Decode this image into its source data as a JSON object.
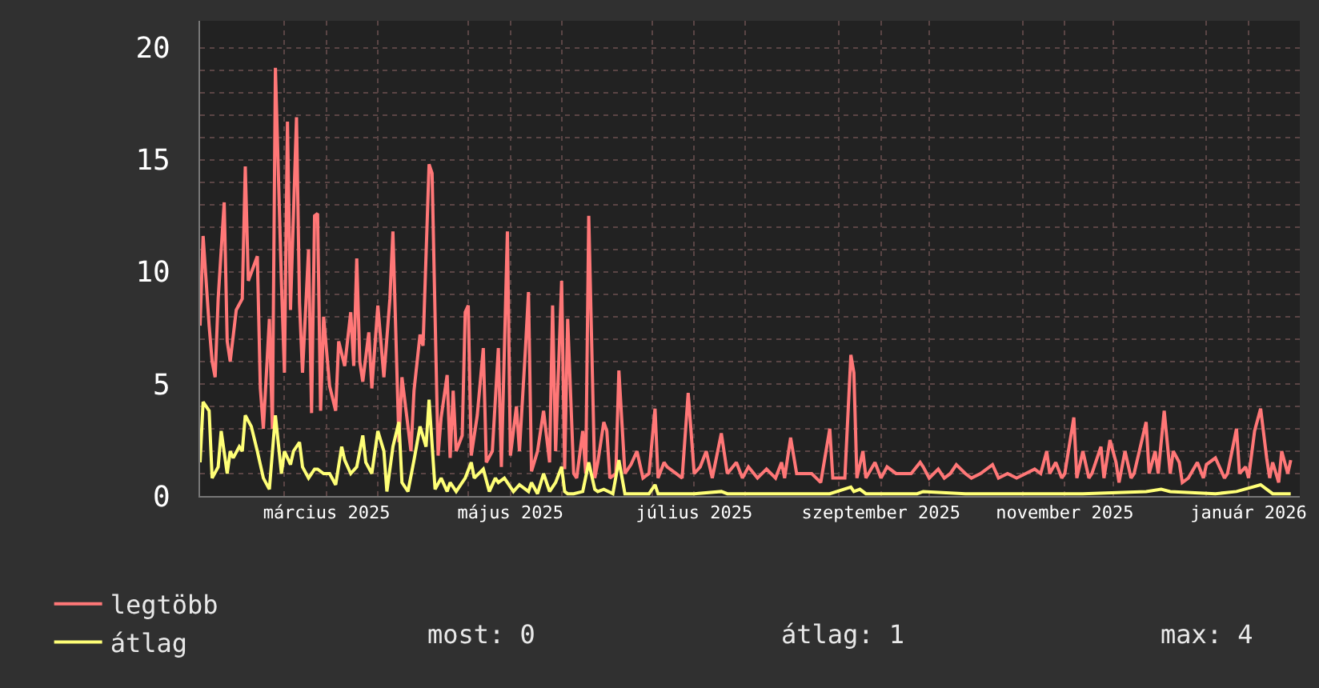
{
  "chart_data": {
    "type": "line",
    "marker": "none",
    "line_style": "solid",
    "grid": true,
    "legend": "bottom left",
    "xlim": [
      "2025-02-01",
      "2026-02-01"
    ],
    "xticks": [
      {
        "value": "2025-03-01",
        "label": null
      },
      {
        "value": "2025-03-15",
        "label": "március 2025"
      },
      {
        "value": "2025-04-01",
        "label": null
      },
      {
        "value": "2025-05-01",
        "label": null
      },
      {
        "value": "2025-05-15",
        "label": "május 2025"
      },
      {
        "value": "2025-06-01",
        "label": null
      },
      {
        "value": "2025-07-01",
        "label": null
      },
      {
        "value": "2025-07-15",
        "label": "július 2025"
      },
      {
        "value": "2025-08-01",
        "label": null
      },
      {
        "value": "2025-09-01",
        "label": null
      },
      {
        "value": "2025-09-15",
        "label": "szeptember 2025"
      },
      {
        "value": "2025-10-01",
        "label": null
      },
      {
        "value": "2025-11-01",
        "label": null
      },
      {
        "value": "2025-11-15",
        "label": "november 2025"
      },
      {
        "value": "2025-12-01",
        "label": null
      },
      {
        "value": "2026-01-01",
        "label": null
      },
      {
        "value": "2026-01-15",
        "label": "január 2026"
      }
    ],
    "ylim": [
      0,
      21.2
    ],
    "yticks": [
      0,
      {
        "value": 1,
        "label": null
      },
      {
        "value": 2,
        "label": null
      },
      {
        "value": 3,
        "label": null
      },
      {
        "value": 4,
        "label": null
      },
      5,
      {
        "value": 6,
        "label": null
      },
      {
        "value": 7,
        "label": null
      },
      {
        "value": 8,
        "label": null
      },
      {
        "value": 9,
        "label": null
      },
      10,
      {
        "value": 11,
        "label": null
      },
      {
        "value": 12,
        "label": null
      },
      {
        "value": 13,
        "label": null
      },
      {
        "value": 14,
        "label": null
      },
      15,
      {
        "value": 16,
        "label": null
      },
      {
        "value": 17,
        "label": null
      },
      {
        "value": 18,
        "label": null
      },
      {
        "value": 19,
        "label": null
      },
      20
    ],
    "series": [
      {
        "name": "legtöbb",
        "color": "#ff7777",
        "x": [
          "2025-02-01",
          "2025-02-02",
          "2025-02-04",
          "2025-02-05",
          "2025-02-06",
          "2025-02-07",
          "2025-02-09",
          "2025-02-10",
          "2025-02-11",
          "2025-02-13",
          "2025-02-15",
          "2025-02-16",
          "2025-02-17",
          "2025-02-20",
          "2025-02-21",
          "2025-02-22",
          "2025-02-24",
          "2025-02-25",
          "2025-02-26",
          "2025-02-28",
          "2025-03-01",
          "2025-03-02",
          "2025-03-03",
          "2025-03-05",
          "2025-03-06",
          "2025-03-07",
          "2025-03-09",
          "2025-03-10",
          "2025-03-11",
          "2025-03-12",
          "2025-03-13",
          "2025-03-14",
          "2025-03-16",
          "2025-03-18",
          "2025-03-19",
          "2025-03-21",
          "2025-03-23",
          "2025-03-24",
          "2025-03-25",
          "2025-03-26",
          "2025-03-27",
          "2025-03-29",
          "2025-03-30",
          "2025-04-01",
          "2025-04-03",
          "2025-04-05",
          "2025-04-06",
          "2025-04-08",
          "2025-04-09",
          "2025-04-12",
          "2025-04-13",
          "2025-04-15",
          "2025-04-16",
          "2025-04-18",
          "2025-04-19",
          "2025-04-20",
          "2025-04-21",
          "2025-04-22",
          "2025-04-24",
          "2025-04-25",
          "2025-04-26",
          "2025-04-27",
          "2025-04-29",
          "2025-04-30",
          "2025-05-01",
          "2025-05-02",
          "2025-05-04",
          "2025-05-06",
          "2025-05-07",
          "2025-05-09",
          "2025-05-11",
          "2025-05-12",
          "2025-05-14",
          "2025-05-15",
          "2025-05-17",
          "2025-05-18",
          "2025-05-20",
          "2025-05-21",
          "2025-05-22",
          "2025-05-24",
          "2025-05-26",
          "2025-05-28",
          "2025-05-29",
          "2025-05-30",
          "2025-06-01",
          "2025-06-02",
          "2025-06-03",
          "2025-06-05",
          "2025-06-06",
          "2025-06-08",
          "2025-06-09",
          "2025-06-10",
          "2025-06-12",
          "2025-06-13",
          "2025-06-15",
          "2025-06-16",
          "2025-06-17",
          "2025-06-19",
          "2025-06-20",
          "2025-06-22",
          "2025-06-24",
          "2025-06-26",
          "2025-06-28",
          "2025-06-30",
          "2025-07-02",
          "2025-07-03",
          "2025-07-05",
          "2025-07-06",
          "2025-07-09",
          "2025-07-11",
          "2025-07-13",
          "2025-07-15",
          "2025-07-17",
          "2025-07-19",
          "2025-07-21",
          "2025-07-24",
          "2025-07-26",
          "2025-07-29",
          "2025-07-31",
          "2025-08-02",
          "2025-08-05",
          "2025-08-08",
          "2025-08-11",
          "2025-08-13",
          "2025-08-14",
          "2025-08-16",
          "2025-08-18",
          "2025-08-21",
          "2025-08-23",
          "2025-08-26",
          "2025-08-29",
          "2025-08-30",
          "2025-09-02",
          "2025-09-03",
          "2025-09-05",
          "2025-09-06",
          "2025-09-07",
          "2025-09-09",
          "2025-09-10",
          "2025-09-13",
          "2025-09-15",
          "2025-09-17",
          "2025-09-20",
          "2025-09-22",
          "2025-09-25",
          "2025-09-28",
          "2025-09-29",
          "2025-10-01",
          "2025-10-04",
          "2025-10-06",
          "2025-10-08",
          "2025-10-10",
          "2025-10-13",
          "2025-10-15",
          "2025-10-18",
          "2025-10-22",
          "2025-10-24",
          "2025-10-27",
          "2025-10-30",
          "2025-11-02",
          "2025-11-05",
          "2025-11-07",
          "2025-11-09",
          "2025-11-10",
          "2025-11-12",
          "2025-11-14",
          "2025-11-15",
          "2025-11-18",
          "2025-11-19",
          "2025-11-21",
          "2025-11-23",
          "2025-11-24",
          "2025-11-27",
          "2025-11-28",
          "2025-11-30",
          "2025-12-02",
          "2025-12-03",
          "2025-12-05",
          "2025-12-07",
          "2025-12-08",
          "2025-12-12",
          "2025-12-13",
          "2025-12-15",
          "2025-12-16",
          "2025-12-18",
          "2025-12-20",
          "2025-12-21",
          "2025-12-23",
          "2025-12-24",
          "2025-12-26",
          "2025-12-29",
          "2025-12-31",
          "2026-01-01",
          "2026-01-04",
          "2026-01-07",
          "2026-01-08",
          "2026-01-11",
          "2026-01-12",
          "2026-01-14",
          "2026-01-15",
          "2026-01-17",
          "2026-01-19",
          "2026-01-21",
          "2026-01-22",
          "2026-01-23",
          "2026-01-25",
          "2026-01-26",
          "2026-01-28",
          "2026-01-29"
        ],
        "values": [
          7.6,
          11.6,
          7.6,
          6.0,
          5.3,
          8.8,
          13.1,
          6.9,
          6.0,
          8.3,
          8.8,
          14.7,
          9.6,
          10.7,
          4.8,
          3.0,
          7.9,
          3.0,
          19.1,
          9.5,
          5.5,
          16.7,
          8.3,
          16.9,
          8.6,
          5.5,
          11.0,
          3.7,
          12.5,
          12.6,
          3.8,
          8.0,
          4.9,
          3.8,
          6.9,
          5.8,
          8.2,
          5.8,
          10.6,
          6.0,
          5.1,
          7.3,
          4.8,
          8.5,
          5.3,
          8.8,
          11.8,
          2.4,
          5.3,
          2.0,
          4.7,
          7.2,
          6.7,
          14.8,
          14.4,
          8.0,
          1.8,
          3.5,
          5.4,
          1.7,
          4.7,
          2.0,
          2.7,
          8.2,
          8.5,
          1.8,
          3.6,
          6.6,
          1.5,
          2.0,
          6.6,
          1.3,
          11.8,
          1.8,
          4.0,
          2.0,
          6.6,
          9.1,
          1.1,
          2.0,
          3.8,
          1.5,
          8.5,
          2.0,
          9.6,
          1.2,
          7.9,
          1.0,
          0.8,
          2.9,
          1.0,
          12.5,
          0.8,
          1.5,
          3.3,
          2.9,
          0.8,
          1.0,
          5.6,
          1.0,
          1.4,
          2.0,
          0.8,
          1.0,
          3.9,
          0.8,
          1.5,
          1.3,
          1.0,
          0.8,
          4.6,
          1.0,
          1.3,
          2.0,
          0.8,
          2.8,
          1.0,
          1.5,
          0.8,
          1.3,
          0.8,
          1.2,
          0.8,
          1.5,
          0.8,
          2.6,
          1.0,
          1.0,
          1.0,
          0.6,
          3.0,
          0.8,
          0.8,
          0.8,
          6.3,
          5.5,
          0.8,
          2.0,
          0.8,
          1.5,
          0.8,
          1.3,
          1.0,
          1.0,
          1.0,
          1.5,
          1.3,
          0.8,
          1.2,
          0.8,
          1.0,
          1.4,
          1.0,
          0.8,
          1.0,
          1.4,
          0.8,
          1.0,
          0.8,
          1.0,
          1.2,
          1.0,
          2.0,
          1.0,
          1.5,
          0.8,
          1.0,
          3.5,
          0.8,
          2.0,
          0.8,
          1.0,
          2.2,
          0.8,
          2.5,
          1.5,
          0.6,
          2.0,
          0.8,
          1.0,
          3.3,
          1.0,
          2.0,
          1.0,
          3.8,
          1.0,
          2.0,
          1.5,
          0.6,
          0.8,
          1.5,
          0.8,
          1.4,
          1.7,
          0.8,
          1.0,
          3.0,
          1.0,
          1.3,
          0.8,
          2.9,
          3.9,
          1.7,
          0.8,
          1.5,
          0.6,
          2.0,
          1.0,
          1.6
        ]
      },
      {
        "name": "átlag",
        "color": "#ffff77",
        "x": [
          "2025-02-01",
          "2025-02-02",
          "2025-02-04",
          "2025-02-05",
          "2025-02-07",
          "2025-02-08",
          "2025-02-10",
          "2025-02-11",
          "2025-02-12",
          "2025-02-14",
          "2025-02-15",
          "2025-02-16",
          "2025-02-18",
          "2025-02-20",
          "2025-02-22",
          "2025-02-24",
          "2025-02-26",
          "2025-02-28",
          "2025-03-01",
          "2025-03-03",
          "2025-03-04",
          "2025-03-06",
          "2025-03-07",
          "2025-03-09",
          "2025-03-11",
          "2025-03-12",
          "2025-03-14",
          "2025-03-16",
          "2025-03-18",
          "2025-03-20",
          "2025-03-21",
          "2025-03-23",
          "2025-03-25",
          "2025-03-27",
          "2025-03-28",
          "2025-03-30",
          "2025-04-01",
          "2025-04-03",
          "2025-04-04",
          "2025-04-06",
          "2025-04-08",
          "2025-04-09",
          "2025-04-11",
          "2025-04-13",
          "2025-04-15",
          "2025-04-17",
          "2025-04-18",
          "2025-04-20",
          "2025-04-22",
          "2025-04-24",
          "2025-04-25",
          "2025-04-27",
          "2025-04-29",
          "2025-04-30",
          "2025-05-02",
          "2025-05-03",
          "2025-05-06",
          "2025-05-08",
          "2025-05-10",
          "2025-05-11",
          "2025-05-13",
          "2025-05-16",
          "2025-05-18",
          "2025-05-21",
          "2025-05-22",
          "2025-05-24",
          "2025-05-26",
          "2025-05-28",
          "2025-05-30",
          "2025-06-01",
          "2025-06-02",
          "2025-06-03",
          "2025-06-05",
          "2025-06-08",
          "2025-06-10",
          "2025-06-12",
          "2025-06-13",
          "2025-06-15",
          "2025-06-18",
          "2025-06-20",
          "2025-06-22",
          "2025-06-25",
          "2025-06-30",
          "2025-07-02",
          "2025-07-03",
          "2025-07-15",
          "2025-07-24",
          "2025-07-26",
          "2025-08-05",
          "2025-08-23",
          "2025-08-29",
          "2025-09-05",
          "2025-09-06",
          "2025-09-08",
          "2025-09-10",
          "2025-09-27",
          "2025-09-29",
          "2025-10-13",
          "2025-11-21",
          "2025-12-12",
          "2025-12-17",
          "2025-12-20",
          "2026-01-04",
          "2026-01-11",
          "2026-01-19",
          "2026-01-23",
          "2026-01-29"
        ],
        "values": [
          1.5,
          4.2,
          3.8,
          0.8,
          1.3,
          2.9,
          1.0,
          2.0,
          1.7,
          2.2,
          2.0,
          3.6,
          3.1,
          2.0,
          0.8,
          0.3,
          3.6,
          1.0,
          2.0,
          1.4,
          2.0,
          2.4,
          1.3,
          0.8,
          1.2,
          1.2,
          1.0,
          1.0,
          0.5,
          2.2,
          1.6,
          1.0,
          1.3,
          2.7,
          1.5,
          1.0,
          2.9,
          2.0,
          0.2,
          2.2,
          3.3,
          0.6,
          0.2,
          1.6,
          3.1,
          2.2,
          4.3,
          0.3,
          0.8,
          0.2,
          0.6,
          0.2,
          0.6,
          0.8,
          1.5,
          0.8,
          1.2,
          0.2,
          0.8,
          0.6,
          0.8,
          0.2,
          0.5,
          0.2,
          0.6,
          0.1,
          1.0,
          0.2,
          0.6,
          1.3,
          0.2,
          0.1,
          0.1,
          0.2,
          1.5,
          0.3,
          0.2,
          0.3,
          0.1,
          1.6,
          0.1,
          0.1,
          0.1,
          0.5,
          0.1,
          0.1,
          0.2,
          0.1,
          0.1,
          0.1,
          0.1,
          0.4,
          0.2,
          0.3,
          0.1,
          0.1,
          0.2,
          0.1,
          0.1,
          0.2,
          0.3,
          0.2,
          0.1,
          0.2,
          0.5,
          0.1,
          0.1
        ]
      }
    ],
    "annotations": [
      "most: 0",
      "átlag: 1",
      "max: 4"
    ]
  }
}
